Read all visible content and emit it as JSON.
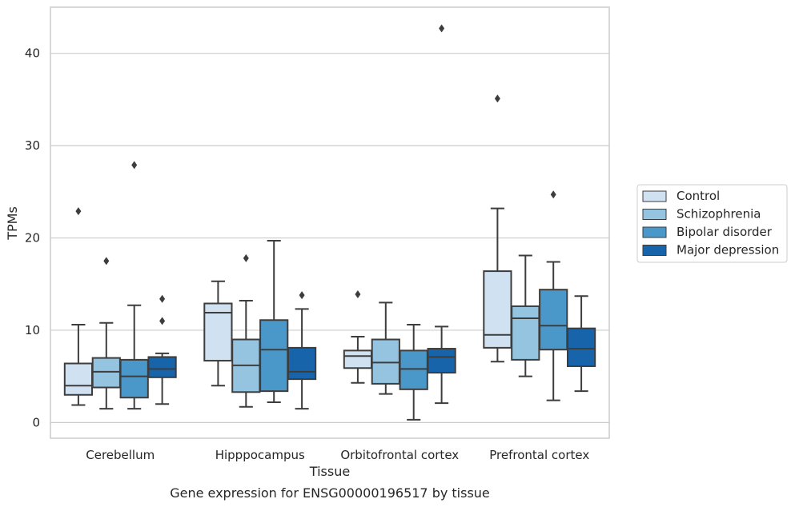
{
  "caption": "Gene expression for ENSG00000196517 by tissue",
  "chart_data": {
    "type": "boxplot",
    "xlabel": "Tissue",
    "ylabel": "TPMs",
    "ylim": [
      -1.7,
      45.0
    ],
    "yticks": [
      0,
      10,
      20,
      30,
      40
    ],
    "grid": true,
    "legend_position": "right",
    "categories": [
      "Cerebellum",
      "Hipppocampus",
      "Orbitofrontal cortex",
      "Prefrontal cortex"
    ],
    "series": [
      {
        "name": "Control",
        "color": "#d0e1f2",
        "boxes": [
          {
            "whisker_low": 1.9,
            "q1": 3.0,
            "median": 4.0,
            "q3": 6.4,
            "whisker_high": 10.6,
            "outliers": [
              22.9
            ]
          },
          {
            "whisker_low": 4.0,
            "q1": 6.7,
            "median": 11.9,
            "q3": 12.9,
            "whisker_high": 15.3,
            "outliers": []
          },
          {
            "whisker_low": 4.3,
            "q1": 5.9,
            "median": 7.2,
            "q3": 7.8,
            "whisker_high": 9.3,
            "outliers": [
              13.9
            ]
          },
          {
            "whisker_low": 6.6,
            "q1": 8.1,
            "median": 9.5,
            "q3": 16.4,
            "whisker_high": 23.2,
            "outliers": [
              35.1
            ]
          }
        ]
      },
      {
        "name": "Schizophrenia",
        "color": "#94c4df",
        "boxes": [
          {
            "whisker_low": 1.5,
            "q1": 3.8,
            "median": 5.5,
            "q3": 7.0,
            "whisker_high": 10.8,
            "outliers": [
              17.5
            ]
          },
          {
            "whisker_low": 1.7,
            "q1": 3.3,
            "median": 6.2,
            "q3": 9.0,
            "whisker_high": 13.2,
            "outliers": [
              17.8
            ]
          },
          {
            "whisker_low": 3.1,
            "q1": 4.2,
            "median": 6.5,
            "q3": 9.0,
            "whisker_high": 13.0,
            "outliers": []
          },
          {
            "whisker_low": 5.0,
            "q1": 6.8,
            "median": 11.3,
            "q3": 12.6,
            "whisker_high": 18.1,
            "outliers": []
          }
        ]
      },
      {
        "name": "Bipolar disorder",
        "color": "#4a98c9",
        "boxes": [
          {
            "whisker_low": 1.5,
            "q1": 2.7,
            "median": 5.0,
            "q3": 6.8,
            "whisker_high": 12.7,
            "outliers": [
              27.9
            ]
          },
          {
            "whisker_low": 2.2,
            "q1": 3.4,
            "median": 7.9,
            "q3": 11.1,
            "whisker_high": 19.7,
            "outliers": []
          },
          {
            "whisker_low": 0.3,
            "q1": 3.6,
            "median": 5.8,
            "q3": 7.8,
            "whisker_high": 10.6,
            "outliers": []
          },
          {
            "whisker_low": 2.4,
            "q1": 7.9,
            "median": 10.5,
            "q3": 14.4,
            "whisker_high": 17.4,
            "outliers": [
              24.7
            ]
          }
        ]
      },
      {
        "name": "Major depression",
        "color": "#1764ab",
        "boxes": [
          {
            "whisker_low": 2.0,
            "q1": 4.9,
            "median": 5.8,
            "q3": 7.1,
            "whisker_high": 7.5,
            "outliers": [
              11.0,
              13.4
            ]
          },
          {
            "whisker_low": 1.5,
            "q1": 4.7,
            "median": 5.5,
            "q3": 8.1,
            "whisker_high": 12.3,
            "outliers": [
              13.8
            ]
          },
          {
            "whisker_low": 2.1,
            "q1": 5.4,
            "median": 7.1,
            "q3": 8.0,
            "whisker_high": 10.4,
            "outliers": [
              42.7
            ]
          },
          {
            "whisker_low": 3.4,
            "q1": 6.1,
            "median": 8.0,
            "q3": 10.2,
            "whisker_high": 13.7,
            "outliers": []
          }
        ]
      }
    ]
  }
}
